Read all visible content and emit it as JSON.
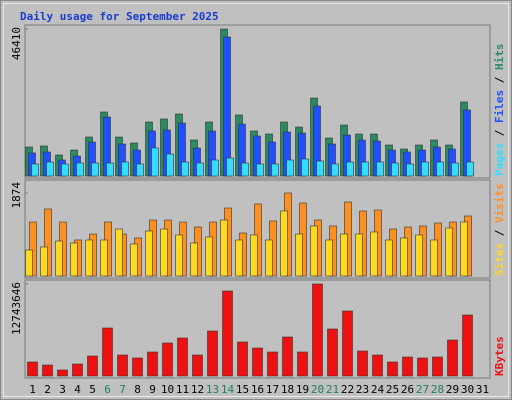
{
  "chart_data": {
    "type": "bar",
    "title": "Daily usage for September 2025",
    "categories": [
      "1",
      "2",
      "3",
      "4",
      "5",
      "6",
      "7",
      "8",
      "9",
      "10",
      "11",
      "12",
      "13",
      "14",
      "15",
      "16",
      "17",
      "18",
      "19",
      "20",
      "21",
      "22",
      "23",
      "24",
      "25",
      "26",
      "27",
      "28",
      "29",
      "30",
      "31"
    ],
    "category_colors": [
      "#000000",
      "#000000",
      "#000000",
      "#000000",
      "#000000",
      "#208060",
      "#208060",
      "#000000",
      "#000000",
      "#000000",
      "#000000",
      "#000000",
      "#208060",
      "#208060",
      "#000000",
      "#000000",
      "#000000",
      "#000000",
      "#000000",
      "#208060",
      "#208060",
      "#000000",
      "#000000",
      "#000000",
      "#000000",
      "#000000",
      "#208060",
      "#208060",
      "#000000",
      "#000000",
      "#000000"
    ],
    "legend_separator": " / ",
    "panels": [
      {
        "ylim": [
          0,
          46410
        ],
        "yticks": [
          46410
        ],
        "series": [
          {
            "name": "Pages",
            "color": "#33ddff",
            "values": [
              3789,
              4420,
              3789,
              4104,
              4104,
              4104,
              4420,
              3789,
              8840,
              6945,
              4420,
              4104,
              5051,
              5683,
              4104,
              3789,
              3789,
              5051,
              5367,
              4736,
              3789,
              4420,
              4420,
              4420,
              4104,
              3789,
              4420,
              4420,
              4104,
              4420,
              null
            ]
          },
          {
            "name": "Files",
            "color": "#2050ff",
            "values": [
              7261,
              7577,
              5051,
              6314,
              10734,
              18626,
              10102,
              8208,
              14207,
              14522,
              16732,
              8840,
              14207,
              43884,
              16417,
              12628,
              10734,
              13891,
              13575,
              22099,
              10102,
              12944,
              11365,
              11050,
              8208,
              7577,
              8208,
              9155,
              8524,
              20837,
              null
            ]
          },
          {
            "name": "Hits",
            "color": "#2a8a60",
            "values": [
              9155,
              9471,
              6630,
              8208,
              12312,
              20205,
              12312,
              10418,
              17048,
              17995,
              19573,
              11365,
              17048,
              46410,
              19258,
              14207,
              13259,
              17048,
              15469,
              24625,
              11997,
              16101,
              13259,
              13259,
              9787,
              8524,
              9787,
              11365,
              9787,
              23362,
              null
            ]
          }
        ]
      },
      {
        "ylim": [
          0,
          1874
        ],
        "yticks": [
          1874
        ],
        "series": [
          {
            "name": "Sites",
            "color": "#ffd820",
            "values": [
              587,
              655,
              790,
              745,
              813,
              813,
              1061,
              723,
              1016,
              1061,
              926,
              745,
              881,
              1264,
              813,
              926,
              813,
              1468,
              948,
              1129,
              813,
              948,
              948,
              994,
              813,
              858,
              926,
              813,
              1084,
              1219,
              null
            ]
          },
          {
            "name": "Visits",
            "color": "#ff9020",
            "values": [
              1219,
              1513,
              1219,
              813,
              948,
              1219,
              948,
              858,
              1264,
              1264,
              1219,
              1106,
              1219,
              1535,
              971,
              1626,
              1242,
              1874,
              1648,
              1264,
              1129,
              1671,
              1468,
              1490,
              1061,
              1106,
              1129,
              1197,
              1219,
              1355,
              null
            ]
          }
        ]
      },
      {
        "ylim": [
          0,
          12743646
        ],
        "yticks": [
          12743646
        ],
        "series": [
          {
            "name": "KBytes",
            "color": "#ee1111",
            "values": [
              1939252,
              1523698,
              831108,
              1662216,
              2770360,
              6648864,
              2908878,
              2493324,
              3324432,
              4571094,
              5263684,
              2908878,
              6233310,
              11774030,
              4709612,
              3878504,
              3324432,
              5402202,
              3324432,
              12743646,
              6510346,
              9003670,
              3462950,
              2908878,
              1939252,
              2631842,
              2493324,
              2631842,
              4986648,
              8449598,
              null
            ]
          }
        ]
      }
    ]
  }
}
